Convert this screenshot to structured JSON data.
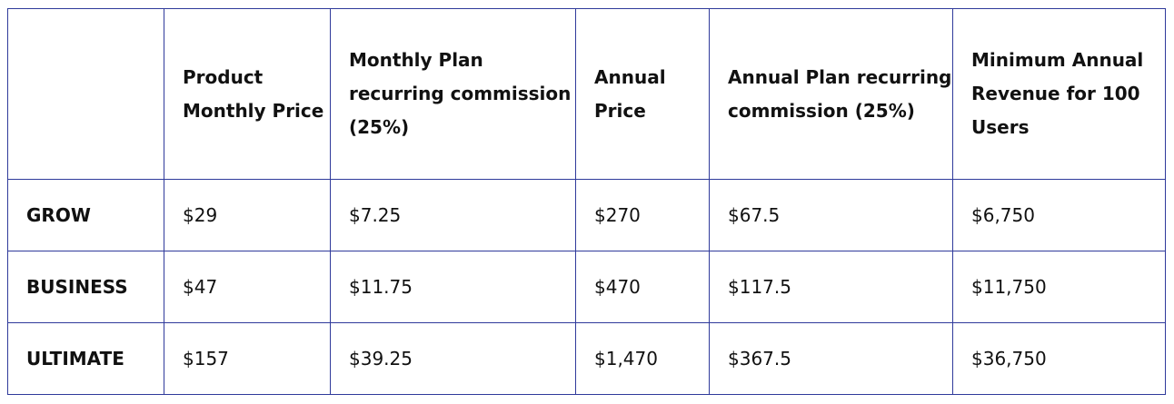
{
  "table": {
    "headers": [
      "",
      "Product Monthly Price",
      "Monthly Plan recurring commission (25%)",
      "Annual Price",
      "Annual Plan recurring commission (25%)",
      "Minimum Annual Revenue for 100 Users"
    ],
    "rows": [
      {
        "plan": "GROW",
        "monthly_price": "$29",
        "monthly_commission": "$7.25",
        "annual_price": "$270",
        "annual_commission": "$67.5",
        "min_annual_revenue": "$6,750"
      },
      {
        "plan": "BUSINESS",
        "monthly_price": "$47",
        "monthly_commission": "$11.75",
        "annual_price": "$470",
        "annual_commission": "$117.5",
        "min_annual_revenue": "$11,750"
      },
      {
        "plan": "ULTIMATE",
        "monthly_price": "$157",
        "monthly_commission": "$39.25",
        "annual_price": "$1,470",
        "annual_commission": "$367.5",
        "min_annual_revenue": "$36,750"
      }
    ]
  },
  "colors": {
    "border": "#2f3a9b",
    "text": "#111111"
  }
}
